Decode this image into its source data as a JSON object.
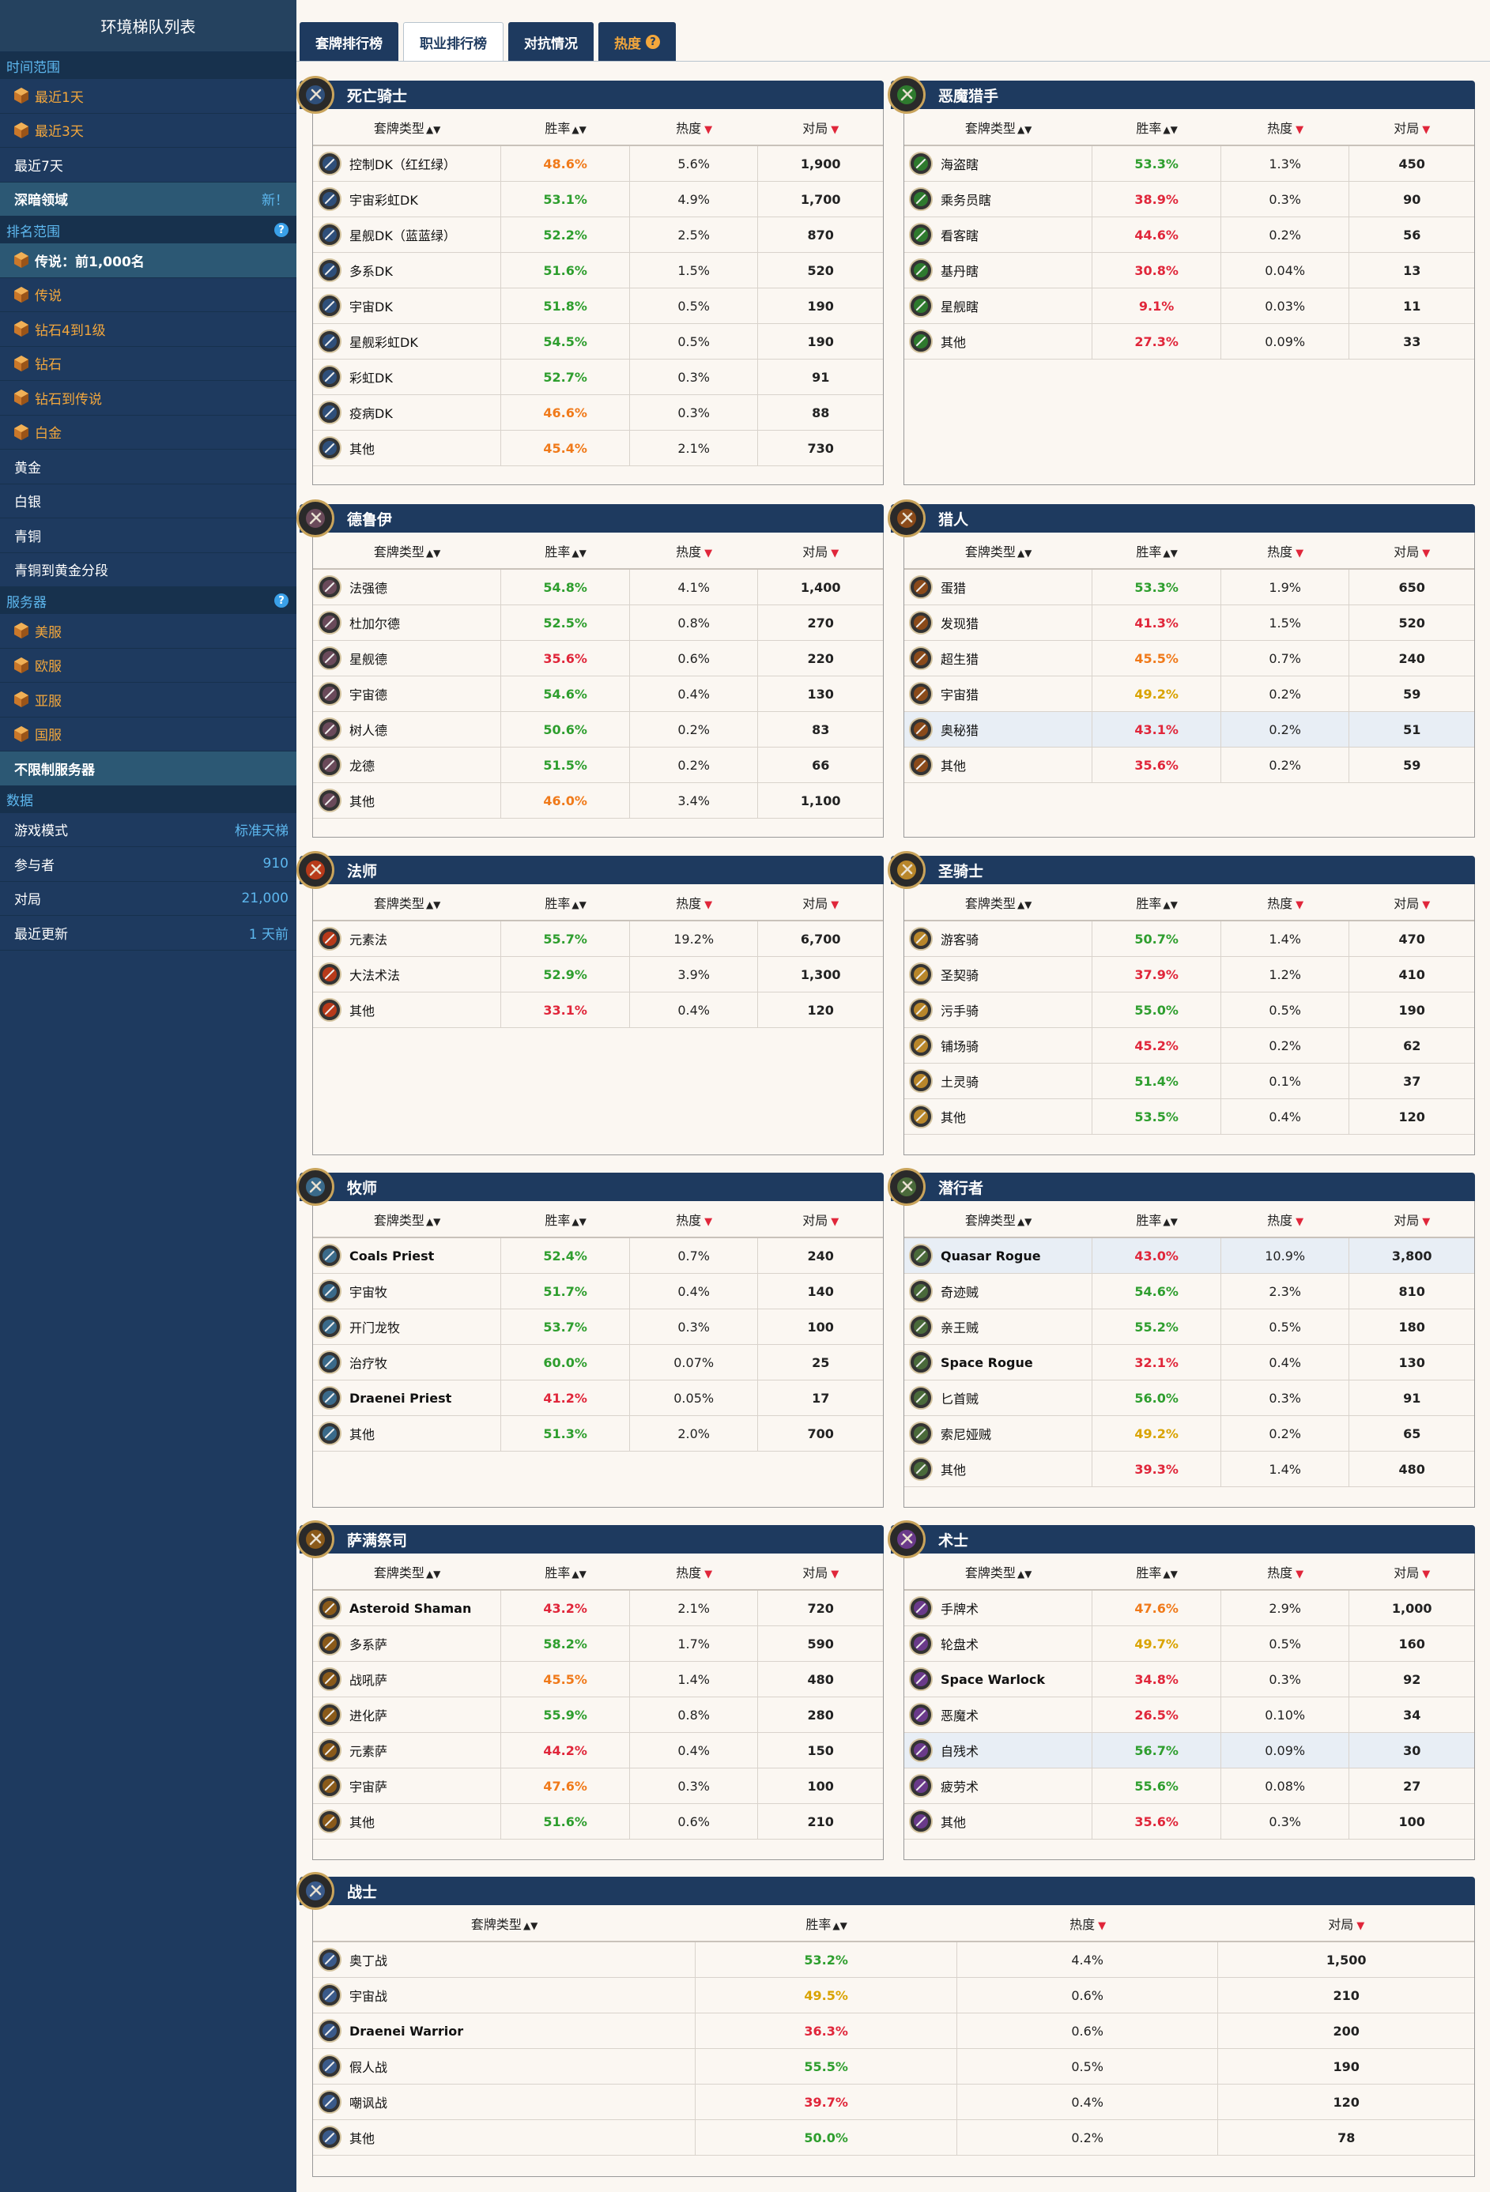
{
  "sidebar": {
    "title": "环境梯队列表",
    "time_section": "时间范围",
    "time_items": [
      {
        "label": "最近1天",
        "hl": true
      },
      {
        "label": "最近3天",
        "hl": true
      },
      {
        "label": "最近7天",
        "hl": false
      }
    ],
    "special": {
      "label": "深暗领域",
      "tag": "新！"
    },
    "rank_section": "排名范围",
    "rank_items": [
      {
        "label": "传说：前1,000名",
        "hl": false,
        "sel": true,
        "gem": true
      },
      {
        "label": "传说",
        "hl": true,
        "gem": true
      },
      {
        "label": "钻石4到1级",
        "hl": true,
        "gem": true
      },
      {
        "label": "钻石",
        "hl": true,
        "gem": true
      },
      {
        "label": "钻石到传说",
        "hl": true,
        "gem": true
      },
      {
        "label": "白金",
        "hl": true,
        "gem": true
      },
      {
        "label": "黄金",
        "hl": false,
        "gem": false
      },
      {
        "label": "白银",
        "hl": false,
        "gem": false
      },
      {
        "label": "青铜",
        "hl": false,
        "gem": false
      },
      {
        "label": "青铜到黄金分段",
        "hl": false,
        "gem": false
      }
    ],
    "server_section": "服务器",
    "server_items": [
      {
        "label": "美服"
      },
      {
        "label": "欧服"
      },
      {
        "label": "亚服"
      },
      {
        "label": "国服"
      }
    ],
    "no_limit": "不限制服务器",
    "data_section": "数据",
    "data_items": [
      {
        "label": "游戏模式",
        "value": "标准天梯"
      },
      {
        "label": "参与者",
        "value": "910"
      },
      {
        "label": "对局",
        "value": "21,000"
      },
      {
        "label": "最近更新",
        "value": "1 天前"
      }
    ]
  },
  "tabs": [
    {
      "label": "套牌排行榜",
      "active": false
    },
    {
      "label": "职业排行榜",
      "active": true
    },
    {
      "label": "对抗情况",
      "active": false
    },
    {
      "label": "热度",
      "active": false,
      "heat": true
    }
  ],
  "columns": {
    "deck": "套牌类型",
    "winrate": "胜率",
    "popularity": "热度",
    "games": "对局"
  },
  "colors": {
    "green": "#2e9e2e",
    "red": "#e0263a",
    "orange": "#f07a1a",
    "yellow": "#d9a300",
    "navy": "#1e3a5f"
  },
  "classes": [
    {
      "name": "死亡骑士",
      "icon": "death-knight-icon",
      "color": "#2f4f7a",
      "rows": [
        [
          "控制DK（红红绿）",
          "48.6%",
          "5.6%",
          "1,900",
          "orange"
        ],
        [
          "宇宙彩虹DK",
          "53.1%",
          "4.9%",
          "1,700",
          "green"
        ],
        [
          "星舰DK（蓝蓝绿）",
          "52.2%",
          "2.5%",
          "870",
          "green"
        ],
        [
          "多系DK",
          "51.6%",
          "1.5%",
          "520",
          "green"
        ],
        [
          "宇宙DK",
          "51.8%",
          "0.5%",
          "190",
          "green"
        ],
        [
          "星舰彩虹DK",
          "54.5%",
          "0.5%",
          "190",
          "green"
        ],
        [
          "彩虹DK",
          "52.7%",
          "0.3%",
          "91",
          "green"
        ],
        [
          "疫病DK",
          "46.6%",
          "0.3%",
          "88",
          "orange"
        ],
        [
          "其他",
          "45.4%",
          "2.1%",
          "730",
          "orange"
        ]
      ]
    },
    {
      "name": "恶魔猎手",
      "icon": "demon-hunter-icon",
      "color": "#2e7a2e",
      "rows": [
        [
          "海盗瞎",
          "53.3%",
          "1.3%",
          "450",
          "green"
        ],
        [
          "乘务员瞎",
          "38.9%",
          "0.3%",
          "90",
          "red"
        ],
        [
          "看客瞎",
          "44.6%",
          "0.2%",
          "56",
          "red"
        ],
        [
          "基丹瞎",
          "30.8%",
          "0.04%",
          "13",
          "red"
        ],
        [
          "星舰瞎",
          "9.1%",
          "0.03%",
          "11",
          "red"
        ],
        [
          "其他",
          "27.3%",
          "0.09%",
          "33",
          "red"
        ]
      ]
    },
    {
      "name": "德鲁伊",
      "icon": "druid-icon",
      "color": "#6a4a5a",
      "rows": [
        [
          "法强德",
          "54.8%",
          "4.1%",
          "1,400",
          "green"
        ],
        [
          "杜加尔德",
          "52.5%",
          "0.8%",
          "270",
          "green"
        ],
        [
          "星舰德",
          "35.6%",
          "0.6%",
          "220",
          "red"
        ],
        [
          "宇宙德",
          "54.6%",
          "0.4%",
          "130",
          "green"
        ],
        [
          "树人德",
          "50.6%",
          "0.2%",
          "83",
          "green"
        ],
        [
          "龙德",
          "51.5%",
          "0.2%",
          "66",
          "green"
        ],
        [
          "其他",
          "46.0%",
          "3.4%",
          "1,100",
          "orange"
        ]
      ]
    },
    {
      "name": "猎人",
      "icon": "hunter-icon",
      "color": "#8a4a1a",
      "rows": [
        [
          "蛋猎",
          "53.3%",
          "1.9%",
          "650",
          "green"
        ],
        [
          "发现猎",
          "41.3%",
          "1.5%",
          "520",
          "red"
        ],
        [
          "超生猎",
          "45.5%",
          "0.7%",
          "240",
          "orange"
        ],
        [
          "宇宙猎",
          "49.2%",
          "0.2%",
          "59",
          "yellow"
        ],
        [
          "奥秘猎",
          "43.1%",
          "0.2%",
          "51",
          "red",
          "shade"
        ],
        [
          "其他",
          "35.6%",
          "0.2%",
          "59",
          "red"
        ]
      ]
    },
    {
      "name": "法师",
      "icon": "mage-icon",
      "color": "#b83a1a",
      "rows": [
        [
          "元素法",
          "55.7%",
          "19.2%",
          "6,700",
          "green"
        ],
        [
          "大法术法",
          "52.9%",
          "3.9%",
          "1,300",
          "green"
        ],
        [
          "其他",
          "33.1%",
          "0.4%",
          "120",
          "red"
        ]
      ]
    },
    {
      "name": "圣骑士",
      "icon": "paladin-icon",
      "color": "#b8862a",
      "rows": [
        [
          "游客骑",
          "50.7%",
          "1.4%",
          "470",
          "green"
        ],
        [
          "圣契骑",
          "37.9%",
          "1.2%",
          "410",
          "red"
        ],
        [
          "污手骑",
          "55.0%",
          "0.5%",
          "190",
          "green"
        ],
        [
          "铺场骑",
          "45.2%",
          "0.2%",
          "62",
          "red"
        ],
        [
          "土灵骑",
          "51.4%",
          "0.1%",
          "37",
          "green"
        ],
        [
          "其他",
          "53.5%",
          "0.4%",
          "120",
          "green"
        ]
      ]
    },
    {
      "name": "牧师",
      "icon": "priest-icon",
      "color": "#3a6a8a",
      "rows": [
        [
          "Coals Priest",
          "52.4%",
          "0.7%",
          "240",
          "green",
          "",
          "latin"
        ],
        [
          "宇宙牧",
          "51.7%",
          "0.4%",
          "140",
          "green"
        ],
        [
          "开门龙牧",
          "53.7%",
          "0.3%",
          "100",
          "green"
        ],
        [
          "治疗牧",
          "60.0%",
          "0.07%",
          "25",
          "green"
        ],
        [
          "Draenei Priest",
          "41.2%",
          "0.05%",
          "17",
          "red",
          "",
          "latin"
        ],
        [
          "其他",
          "51.3%",
          "2.0%",
          "700",
          "green"
        ]
      ]
    },
    {
      "name": "潜行者",
      "icon": "rogue-icon",
      "color": "#4a6a3a",
      "rows": [
        [
          "Quasar Rogue",
          "43.0%",
          "10.9%",
          "3,800",
          "red",
          "shade",
          "latin"
        ],
        [
          "奇迹贼",
          "54.6%",
          "2.3%",
          "810",
          "green"
        ],
        [
          "亲王贼",
          "55.2%",
          "0.5%",
          "180",
          "green"
        ],
        [
          "Space Rogue",
          "32.1%",
          "0.4%",
          "130",
          "red",
          "",
          "latin"
        ],
        [
          "匕首贼",
          "56.0%",
          "0.3%",
          "91",
          "green"
        ],
        [
          "索尼娅贼",
          "49.2%",
          "0.2%",
          "65",
          "yellow"
        ],
        [
          "其他",
          "39.3%",
          "1.4%",
          "480",
          "red"
        ]
      ]
    },
    {
      "name": "萨满祭司",
      "icon": "shaman-icon",
      "color": "#8a5a1a",
      "rows": [
        [
          "Asteroid Shaman",
          "43.2%",
          "2.1%",
          "720",
          "red",
          "",
          "latin"
        ],
        [
          "多系萨",
          "58.2%",
          "1.7%",
          "590",
          "green"
        ],
        [
          "战吼萨",
          "45.5%",
          "1.4%",
          "480",
          "orange"
        ],
        [
          "进化萨",
          "55.9%",
          "0.8%",
          "280",
          "green"
        ],
        [
          "元素萨",
          "44.2%",
          "0.4%",
          "150",
          "red"
        ],
        [
          "宇宙萨",
          "47.6%",
          "0.3%",
          "100",
          "orange"
        ],
        [
          "其他",
          "51.6%",
          "0.6%",
          "210",
          "green"
        ]
      ]
    },
    {
      "name": "术士",
      "icon": "warlock-icon",
      "color": "#6a3a8a",
      "rows": [
        [
          "手牌术",
          "47.6%",
          "2.9%",
          "1,000",
          "orange"
        ],
        [
          "轮盘术",
          "49.7%",
          "0.5%",
          "160",
          "yellow"
        ],
        [
          "Space Warlock",
          "34.8%",
          "0.3%",
          "92",
          "red",
          "",
          "latin"
        ],
        [
          "恶魔术",
          "26.5%",
          "0.10%",
          "34",
          "red"
        ],
        [
          "自残术",
          "56.7%",
          "0.09%",
          "30",
          "green",
          "shade"
        ],
        [
          "疲劳术",
          "55.6%",
          "0.08%",
          "27",
          "green"
        ],
        [
          "其他",
          "35.6%",
          "0.3%",
          "100",
          "red"
        ]
      ]
    },
    {
      "name": "战士",
      "icon": "warrior-icon",
      "color": "#3a5a8a",
      "rows": [
        [
          "奥丁战",
          "53.2%",
          "4.4%",
          "1,500",
          "green"
        ],
        [
          "宇宙战",
          "49.5%",
          "0.6%",
          "210",
          "yellow"
        ],
        [
          "Draenei Warrior",
          "36.3%",
          "0.6%",
          "200",
          "red",
          "",
          "latin"
        ],
        [
          "假人战",
          "55.5%",
          "0.5%",
          "190",
          "green"
        ],
        [
          "嘲讽战",
          "39.7%",
          "0.4%",
          "120",
          "red"
        ],
        [
          "其他",
          "50.0%",
          "0.2%",
          "78",
          "green"
        ]
      ]
    }
  ]
}
